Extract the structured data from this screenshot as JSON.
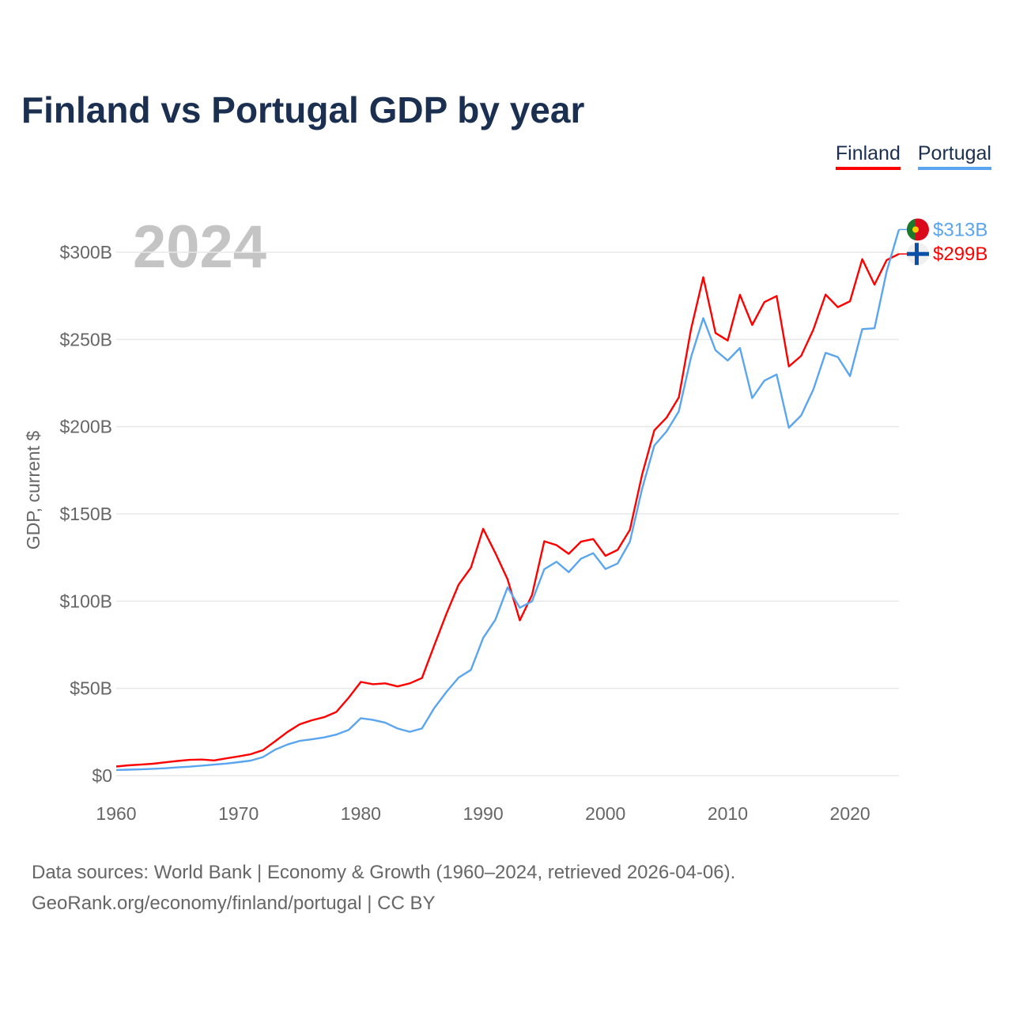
{
  "chart_data": {
    "type": "line",
    "title": "Finland vs Portugal GDP by year",
    "ylabel": "GDP, current $",
    "xlabel": "",
    "year_label": "2024",
    "xlim": [
      1960,
      2024
    ],
    "ylim": [
      0,
      320
    ],
    "y_ticks": [
      0,
      50,
      100,
      150,
      200,
      250,
      300
    ],
    "y_tick_labels": [
      "$0",
      "$50B",
      "$100B",
      "$150B",
      "$200B",
      "$250B",
      "$300B"
    ],
    "x_ticks": [
      1960,
      1970,
      1980,
      1990,
      2000,
      2010,
      2020
    ],
    "x_tick_labels": [
      "1960",
      "1970",
      "1980",
      "1990",
      "2000",
      "2010",
      "2020"
    ],
    "grid": true,
    "legend_position": "top-right",
    "x_start": 1960,
    "series": [
      {
        "name": "Finland",
        "color": "#ff0000",
        "end_label": "$299B",
        "flag": "finland-flag",
        "values": [
          5.2,
          5.9,
          6.3,
          6.8,
          7.6,
          8.4,
          9.0,
          9.2,
          8.7,
          9.9,
          11.0,
          12.3,
          14.6,
          19.7,
          25.0,
          29.4,
          31.7,
          33.5,
          36.5,
          44.6,
          53.7,
          52.4,
          52.9,
          51.1,
          52.9,
          55.9,
          74.6,
          92.8,
          109.5,
          119.2,
          141.5,
          127.6,
          112.5,
          89.0,
          103.5,
          134.3,
          132.1,
          127.1,
          134.1,
          135.6,
          126.0,
          129.4,
          140.9,
          172.6,
          197.9,
          205.2,
          216.8,
          255.8,
          285.7,
          253.7,
          249.4,
          275.6,
          258.3,
          271.4,
          274.9,
          234.5,
          240.6,
          255.6,
          275.7,
          268.5,
          271.9,
          296.0,
          281.4,
          295.5,
          299.0
        ]
      },
      {
        "name": "Portugal",
        "color": "#5aa5ef",
        "end_label": "$313B",
        "flag": "portugal-flag",
        "values": [
          3.2,
          3.4,
          3.6,
          3.9,
          4.2,
          4.7,
          5.1,
          5.7,
          6.3,
          6.9,
          7.7,
          8.6,
          10.6,
          14.9,
          17.8,
          19.9,
          20.8,
          21.9,
          23.5,
          26.2,
          32.9,
          31.9,
          30.3,
          27.0,
          25.1,
          27.0,
          38.7,
          48.0,
          56.2,
          60.6,
          78.9,
          89.3,
          107.9,
          96.2,
          99.9,
          118.3,
          122.6,
          116.6,
          124.3,
          127.5,
          118.4,
          121.6,
          134.1,
          164.5,
          189.2,
          197.3,
          208.8,
          239.8,
          262.2,
          243.8,
          237.9,
          245.1,
          216.4,
          226.4,
          229.9,
          199.4,
          206.4,
          221.3,
          242.3,
          239.9,
          229.0,
          255.9,
          256.4,
          289.1,
          313.0
        ]
      }
    ]
  },
  "footer": {
    "line1": "Data sources: World Bank | Economy & Growth (1960–2024, retrieved 2026-04-06).",
    "line2": "GeoRank.org/economy/finland/portugal | CC BY"
  }
}
